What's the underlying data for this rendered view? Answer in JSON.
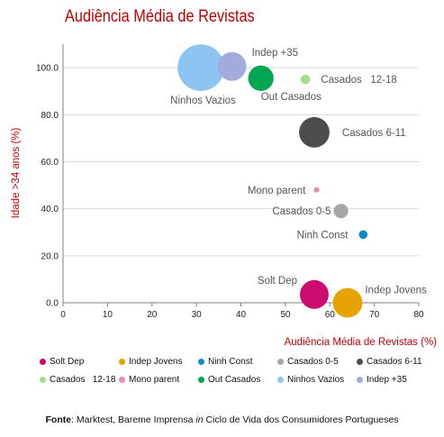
{
  "chart_data": {
    "type": "scatter",
    "subtype": "bubble",
    "title": "Audiência Média de Revistas",
    "xlabel": "Audiência Média de Revistas (%)",
    "ylabel": "Idade >34 anos (%)",
    "xlim": [
      0,
      80
    ],
    "ylim": [
      0,
      110
    ],
    "xticks": [
      "0",
      "10",
      "20",
      "30",
      "40",
      "50",
      "60",
      "70",
      "80"
    ],
    "yticks": [
      "0.0",
      "20.0",
      "40.0",
      "60.0",
      "80.0",
      "100.0"
    ],
    "grid": true,
    "legend_position": "bottom",
    "series": [
      {
        "name": "Solt Dep",
        "label": "Solt Dep",
        "x": 56.5,
        "y": 3.5,
        "size": 0.55,
        "color": "#cc0b6e"
      },
      {
        "name": "Indep Jovens",
        "label": "Indep Jovens",
        "x": 64.0,
        "y": 0.0,
        "size": 0.58,
        "color": "#e5a200"
      },
      {
        "name": "Ninh Const",
        "label": "Ninh Const",
        "x": 67.5,
        "y": 29.0,
        "size": 0.05,
        "color": "#0f8cc5"
      },
      {
        "name": "Casados 0-5",
        "label": "Casados 0-5",
        "x": 62.5,
        "y": 39.0,
        "size": 0.14,
        "color": "#a6a6a6"
      },
      {
        "name": "Casados 6-11",
        "label": "Casados 6-11",
        "x": 56.5,
        "y": 72.5,
        "size": 0.62,
        "color": "#4d4d4d"
      },
      {
        "name": "Casados   12-18",
        "label": "Casados   12-18",
        "x": 54.5,
        "y": 95.0,
        "size": 0.06,
        "color": "#a8dc8c"
      },
      {
        "name": "Mono parent",
        "label": "Mono parent",
        "x": 57.0,
        "y": 48.0,
        "size": 0.02,
        "color": "#ee88bb"
      },
      {
        "name": "Out Casados",
        "label": "Out Casados",
        "x": 44.5,
        "y": 95.5,
        "size": 0.43,
        "color": "#00a651"
      },
      {
        "name": "Ninhos Vazios",
        "label": "Ninhos Vazios",
        "x": 31.0,
        "y": 100.0,
        "size": 1.45,
        "color": "#8ec4f2"
      },
      {
        "name": "Indep +35",
        "label": "Indep +35",
        "x": 38.0,
        "y": 100.5,
        "size": 0.55,
        "color": "#a2abdb"
      }
    ]
  },
  "source": {
    "prefix": "Fonte",
    "text1": ": Marktest, Bareme Imprensa ",
    "italic": "in",
    "text2": " Ciclo de Vida dos Consumidores Portugueses"
  }
}
